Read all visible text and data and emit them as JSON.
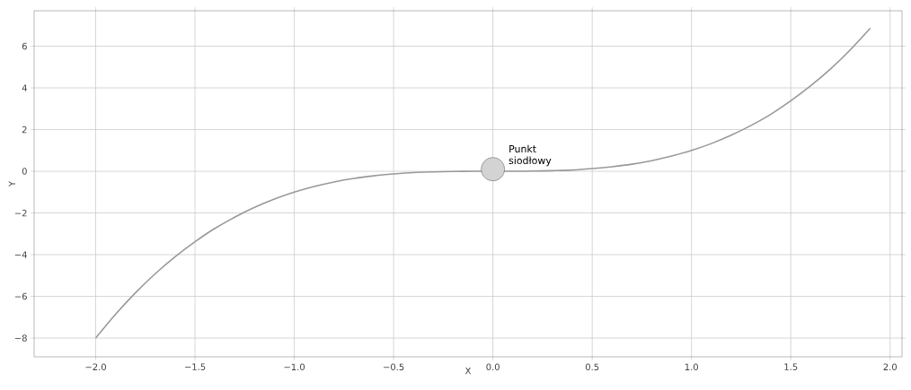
{
  "chart_data": {
    "type": "line",
    "xlabel": "X",
    "ylabel": "Y",
    "x": [
      -2.0,
      -1.9,
      -1.8,
      -1.7,
      -1.6,
      -1.5,
      -1.4,
      -1.3,
      -1.2,
      -1.1,
      -1.0,
      -0.9,
      -0.8,
      -0.7,
      -0.6,
      -0.5,
      -0.4,
      -0.3,
      -0.2,
      -0.1,
      0.0,
      0.1,
      0.2,
      0.3,
      0.4,
      0.5,
      0.6,
      0.7,
      0.8,
      0.9,
      1.0,
      1.1,
      1.2,
      1.3,
      1.4,
      1.5,
      1.6,
      1.7,
      1.8,
      1.9
    ],
    "series": [
      {
        "color": "#999999",
        "values": [
          -8,
          -6.86,
          -5.83,
          -4.91,
          -4.1,
          -3.38,
          -2.74,
          -2.2,
          -1.73,
          -1.33,
          -1,
          -0.73,
          -0.51,
          -0.34,
          -0.22,
          -0.13,
          -0.06,
          -0.03,
          -0.01,
          0,
          0,
          0,
          0.01,
          0.03,
          0.06,
          0.13,
          0.22,
          0.34,
          0.51,
          0.73,
          1,
          1.33,
          1.73,
          2.2,
          2.74,
          3.38,
          4.1,
          4.91,
          5.83,
          6.86
        ]
      },
      {
        "type": "scatter",
        "color": "#d3d3d3",
        "marker": "circle",
        "x": [
          0
        ],
        "values": [
          0.1
        ]
      }
    ],
    "annotations": [
      {
        "text": "Punkt siodłowy",
        "x": 0,
        "y": 0.1
      }
    ],
    "xlim": [
      -2.31,
      2.06
    ],
    "ylim": [
      -8.9,
      7.7
    ],
    "xticks": [
      {
        "value": -2,
        "label": "−2.0"
      },
      {
        "value": -1.5,
        "label": "−1.5"
      },
      {
        "value": -1,
        "label": "−1.0"
      },
      {
        "value": -0.5,
        "label": "−0.5"
      },
      {
        "value": 0,
        "label": "0.0"
      },
      {
        "value": 0.5,
        "label": "0.5"
      },
      {
        "value": 1,
        "label": "1.0"
      },
      {
        "value": 1.5,
        "label": "1.5"
      },
      {
        "value": 2,
        "label": "2.0"
      }
    ],
    "yticks": [
      {
        "value": -8,
        "label": "−8"
      },
      {
        "value": -6,
        "label": "−6"
      },
      {
        "value": -4,
        "label": "−4"
      },
      {
        "value": -2,
        "label": "−2"
      },
      0,
      2,
      4,
      6
    ],
    "grid": true
  }
}
